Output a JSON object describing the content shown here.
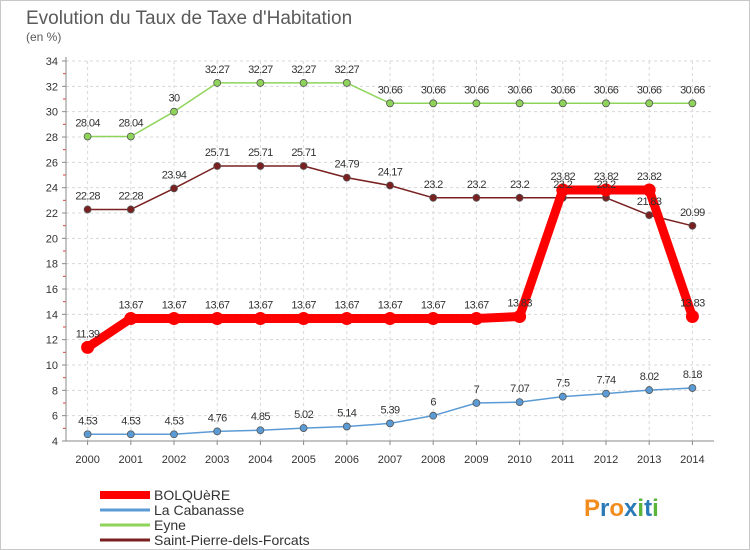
{
  "chart_data": {
    "type": "line",
    "title": "Evolution du Taux de Taxe d'Habitation",
    "subtitle": "(en %)",
    "categories": [
      "2000",
      "2001",
      "2002",
      "2003",
      "2004",
      "2005",
      "2006",
      "2007",
      "2008",
      "2009",
      "2010",
      "2011",
      "2012",
      "2013",
      "2014"
    ],
    "ylim": [
      4,
      34
    ],
    "yticks": [
      4,
      6,
      8,
      10,
      12,
      14,
      16,
      18,
      20,
      22,
      24,
      26,
      28,
      30,
      32,
      34
    ],
    "grid": true,
    "legend_position": "bottom-left",
    "series": [
      {
        "name": "La Cabanasse",
        "color": "#5b9bd5",
        "values": [
          4.53,
          4.53,
          4.53,
          4.76,
          4.85,
          5.02,
          5.14,
          5.39,
          6,
          7,
          7.07,
          7.5,
          7.74,
          8.02,
          8.18
        ],
        "labels": [
          "4.53",
          "4.53",
          "4.53",
          "4.76",
          "4.85",
          "5.02",
          "5.14",
          "5.39",
          "6",
          "7",
          "7.07",
          "7.5",
          "7.74",
          "8.02",
          "8.18"
        ]
      },
      {
        "name": "Eyne",
        "color": "#8fd45a",
        "values": [
          28.04,
          28.04,
          30,
          32.27,
          32.27,
          32.27,
          32.27,
          30.66,
          30.66,
          30.66,
          30.66,
          30.66,
          30.66,
          30.66,
          30.66
        ],
        "labels": [
          "28.04",
          "28.04",
          "30",
          "32.27",
          "32.27",
          "32.27",
          "32.27",
          "30.66",
          "30.66",
          "30.66",
          "30.66",
          "30.66",
          "30.66",
          "30.66",
          "30.66"
        ]
      },
      {
        "name": "Saint-Pierre-dels-Forcats",
        "color": "#7a2020",
        "values": [
          22.28,
          22.28,
          23.94,
          25.71,
          25.71,
          25.71,
          24.79,
          24.17,
          23.2,
          23.2,
          23.2,
          23.2,
          23.2,
          21.83,
          20.99
        ],
        "labels": [
          "22.28",
          "22.28",
          "23.94",
          "25.71",
          "25.71",
          "25.71",
          "24.79",
          "24.17",
          "23.2",
          "23.2",
          "23.2",
          "23.2",
          "23.2",
          "21.83",
          "20.99"
        ]
      },
      {
        "name": "BOLQUèRE",
        "color": "#ff0000",
        "values": [
          11.39,
          13.67,
          13.67,
          13.67,
          13.67,
          13.67,
          13.67,
          13.67,
          13.67,
          13.67,
          13.83,
          23.82,
          23.82,
          23.82,
          13.83
        ],
        "labels": [
          "11.39",
          "13.67",
          "13.67",
          "13.67",
          "13.67",
          "13.67",
          "13.67",
          "13.67",
          "13.67",
          "13.67",
          "13.83",
          "23.82",
          "23.82",
          "23.82",
          "13.83"
        ]
      }
    ],
    "legend": [
      {
        "label": "BOLQUèRE",
        "color": "#ff0000"
      },
      {
        "label": "La Cabanasse",
        "color": "#5b9bd5"
      },
      {
        "label": "Eyne",
        "color": "#8fd45a"
      },
      {
        "label": "Saint-Pierre-dels-Forcats",
        "color": "#7a2020"
      }
    ]
  },
  "logo": {
    "text": "Proxiti",
    "colors": [
      "#f28c1e",
      "#2a7ab8",
      "#f28c1e",
      "#2a7ab8",
      "#5ab53a",
      "#2a7ab8",
      "#5ab53a"
    ]
  }
}
